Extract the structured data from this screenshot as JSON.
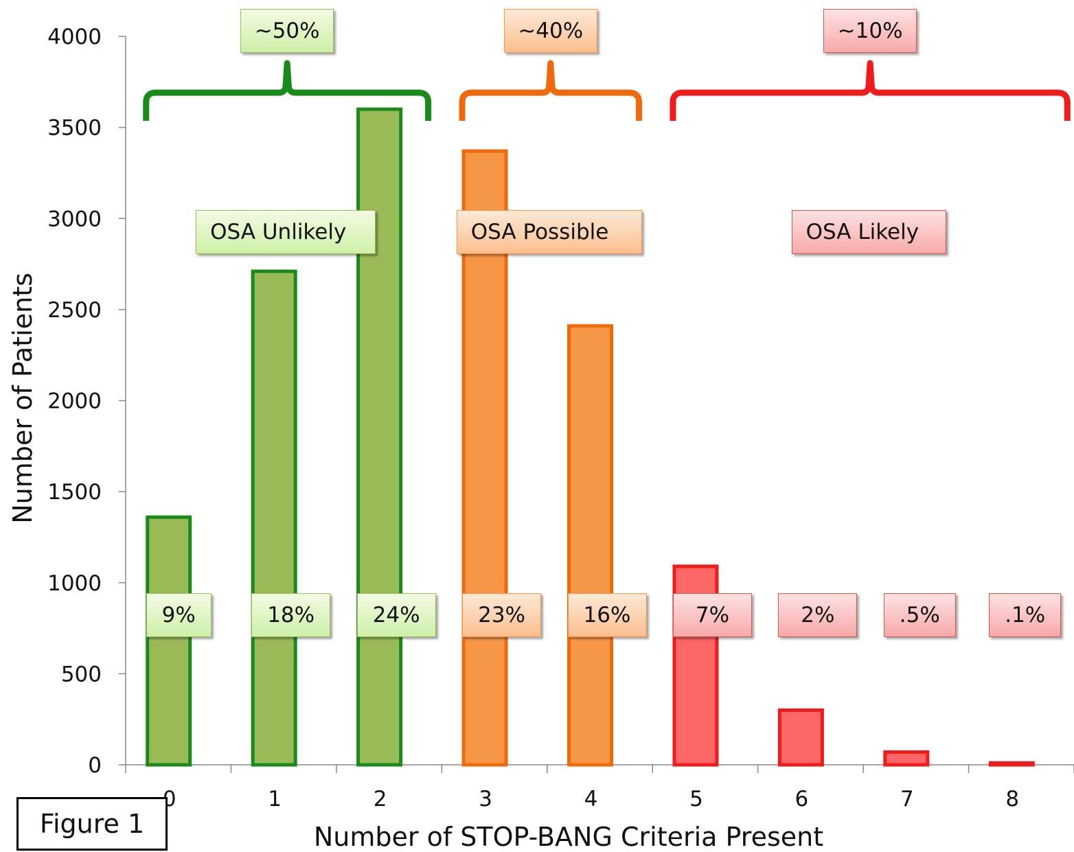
{
  "chart_data": {
    "type": "bar",
    "xlabel": "Number of STOP-BANG Criteria Present",
    "ylabel": "Number of Patients",
    "ylim": [
      0,
      4000
    ],
    "yticks": [
      "0",
      "500",
      "1000",
      "1500",
      "2000",
      "2500",
      "3000",
      "3500",
      "4000"
    ],
    "categories": [
      "0",
      "1",
      "2",
      "3",
      "4",
      "5",
      "6",
      "7",
      "8"
    ],
    "values": [
      1360,
      2710,
      3600,
      3370,
      2410,
      1090,
      300,
      70,
      10
    ],
    "bar_percent_labels": [
      "9%",
      "18%",
      "24%",
      "23%",
      "16%",
      "7%",
      "2%",
      ".5%",
      ".1%"
    ],
    "groups": [
      {
        "label": "OSA Unlikely",
        "share": "~50%",
        "categories": [
          "0",
          "1",
          "2"
        ],
        "color": "#9bbb59",
        "stroke": "#1a8a1a"
      },
      {
        "label": "OSA Possible",
        "share": "~40%",
        "categories": [
          "3",
          "4"
        ],
        "color": "#f79646",
        "stroke": "#f06a0c"
      },
      {
        "label": "OSA Likely",
        "share": "~10%",
        "categories": [
          "5",
          "6",
          "7",
          "8"
        ],
        "color": "#ff6666",
        "stroke": "#ee1c1c"
      }
    ],
    "grid": false,
    "legend": "none"
  },
  "figure_label": "Figure 1"
}
